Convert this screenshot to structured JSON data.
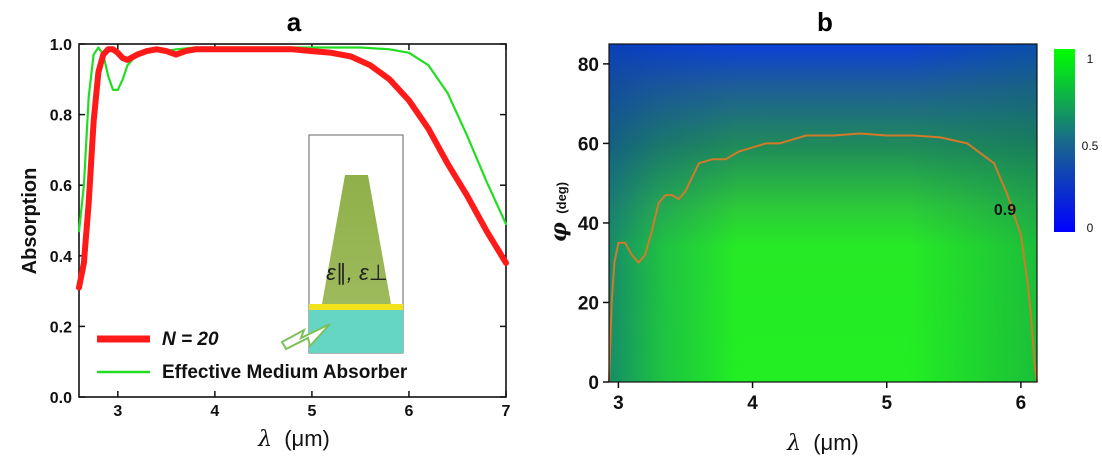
{
  "chart_data": [
    {
      "panel": "a",
      "type": "line",
      "xlabel_symbol": "λ",
      "xlabel_unit": "(μm)",
      "ylabel": "Absorption",
      "xlim": [
        2.6,
        7
      ],
      "ylim": [
        0.0,
        1.0
      ],
      "xticks": [
        3,
        4,
        5,
        6,
        7
      ],
      "yticks": [
        0.0,
        0.2,
        0.4,
        0.6,
        0.8,
        1.0
      ],
      "legend_position": "bottom-left",
      "series": [
        {
          "name": "N = 20",
          "color": "#ff1a1a",
          "x": [
            2.6,
            2.65,
            2.7,
            2.75,
            2.8,
            2.85,
            2.9,
            2.95,
            3.0,
            3.05,
            3.1,
            3.2,
            3.3,
            3.4,
            3.5,
            3.6,
            3.7,
            3.8,
            4.0,
            4.2,
            4.5,
            4.8,
            5.0,
            5.2,
            5.4,
            5.6,
            5.8,
            6.0,
            6.2,
            6.4,
            6.6,
            6.8,
            7.0
          ],
          "y": [
            0.31,
            0.38,
            0.55,
            0.78,
            0.92,
            0.97,
            0.985,
            0.985,
            0.975,
            0.96,
            0.955,
            0.97,
            0.98,
            0.985,
            0.98,
            0.97,
            0.98,
            0.985,
            0.985,
            0.985,
            0.985,
            0.985,
            0.98,
            0.975,
            0.965,
            0.94,
            0.9,
            0.84,
            0.76,
            0.66,
            0.57,
            0.47,
            0.38
          ]
        },
        {
          "name": "Effective Medium Absorber",
          "color": "#22dd22",
          "x": [
            2.6,
            2.65,
            2.7,
            2.75,
            2.8,
            2.85,
            2.9,
            2.95,
            3.0,
            3.05,
            3.1,
            3.2,
            3.3,
            3.4,
            3.5,
            3.6,
            3.8,
            4.0,
            4.5,
            5.0,
            5.5,
            5.8,
            6.0,
            6.2,
            6.4,
            6.6,
            6.8,
            7.0
          ],
          "y": [
            0.47,
            0.6,
            0.85,
            0.97,
            0.99,
            0.97,
            0.91,
            0.87,
            0.87,
            0.9,
            0.94,
            0.97,
            0.985,
            0.985,
            0.98,
            0.985,
            0.99,
            0.99,
            0.99,
            0.99,
            0.99,
            0.985,
            0.975,
            0.94,
            0.86,
            0.74,
            0.61,
            0.49
          ]
        }
      ],
      "inset": {
        "formula": "ε∥, ε⊥"
      }
    },
    {
      "panel": "b",
      "type": "heatmap",
      "xlabel_symbol": "λ",
      "xlabel_unit": "(μm)",
      "ylabel_symbol": "φ",
      "ylabel_unit": "(deg)",
      "xlim": [
        2.93,
        6.12
      ],
      "ylim": [
        0,
        85
      ],
      "xticks": [
        3,
        4,
        5,
        6
      ],
      "yticks": [
        0,
        20,
        40,
        60,
        80
      ],
      "colorbar": {
        "ticks": [
          "1",
          "0.5",
          "0"
        ],
        "min": 0,
        "max": 1
      },
      "contour": {
        "level_label": "0.9",
        "color": "#d07a2a",
        "x": [
          2.93,
          2.95,
          2.97,
          3.0,
          3.05,
          3.1,
          3.15,
          3.2,
          3.25,
          3.3,
          3.35,
          3.4,
          3.45,
          3.5,
          3.6,
          3.7,
          3.8,
          3.9,
          4.0,
          4.1,
          4.2,
          4.4,
          4.6,
          4.8,
          5.0,
          5.2,
          5.4,
          5.6,
          5.8,
          5.9,
          6.0,
          6.05,
          6.08,
          6.1,
          6.12
        ],
        "y": [
          0,
          20,
          30,
          35,
          35,
          32,
          30,
          32,
          38,
          45,
          47,
          47,
          46,
          48,
          55,
          56,
          56,
          58,
          59,
          60,
          60,
          62,
          62,
          62.5,
          62,
          62,
          61.5,
          60,
          55,
          47,
          37,
          25,
          15,
          5,
          0
        ]
      }
    }
  ]
}
